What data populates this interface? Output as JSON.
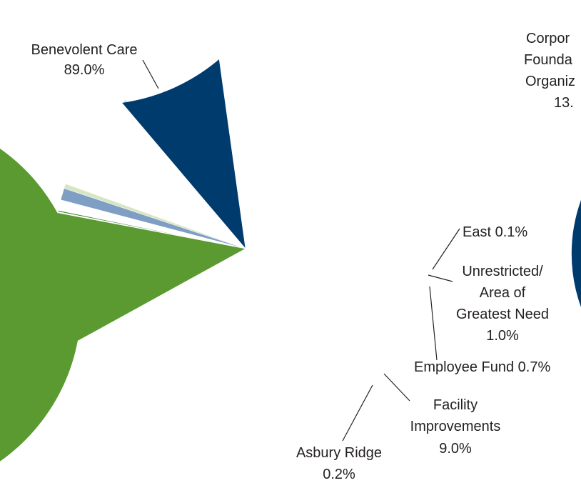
{
  "chart_data": [
    {
      "type": "pie",
      "title": "",
      "slices": [
        {
          "label": "Benevolent Care",
          "value": 89.0,
          "value_label": "89.0%",
          "color": "#5a9a31"
        },
        {
          "label": "Asbury Ridge",
          "value": 0.2,
          "value_label": "0.2%",
          "color": "#c5d8ea"
        },
        {
          "label": "Facility Improvements",
          "value": 9.0,
          "value_label": "9.0%",
          "color": "#003b6e"
        },
        {
          "label": "Employee Fund",
          "value": 0.7,
          "value_label": "0.7%",
          "color": "#d6e6c4"
        },
        {
          "label": "Unrestricted/ Area of Greatest Need",
          "value": 1.0,
          "value_label": "1.0%",
          "color": "#7f9ec4"
        },
        {
          "label": "East",
          "value": 0.1,
          "value_label": "0.1%",
          "color": "#2e7d1f"
        }
      ]
    },
    {
      "type": "pie",
      "title": "",
      "visible": "partial (cut off at right edge)",
      "slices": [
        {
          "label": "Corporations/Foundations/Organizations",
          "label_visible_lines": [
            "Corpor",
            "Founda",
            "Organiz",
            "13."
          ],
          "color": "#003b6e"
        }
      ]
    }
  ],
  "labels": {
    "benevolent": [
      "Benevolent Care",
      "89.0%"
    ],
    "asbury": [
      "Asbury Ridge",
      "0.2%"
    ],
    "facility": [
      "Facility",
      "Improvements",
      "9.0%"
    ],
    "employee": [
      "Employee Fund 0.7%"
    ],
    "unrestricted": [
      "Unrestricted/",
      "Area of",
      "Greatest Need",
      "1.0%"
    ],
    "east": [
      "East 0.1%"
    ],
    "corp_partial": [
      "Corpor",
      "Founda",
      "Organiz",
      "13."
    ]
  }
}
